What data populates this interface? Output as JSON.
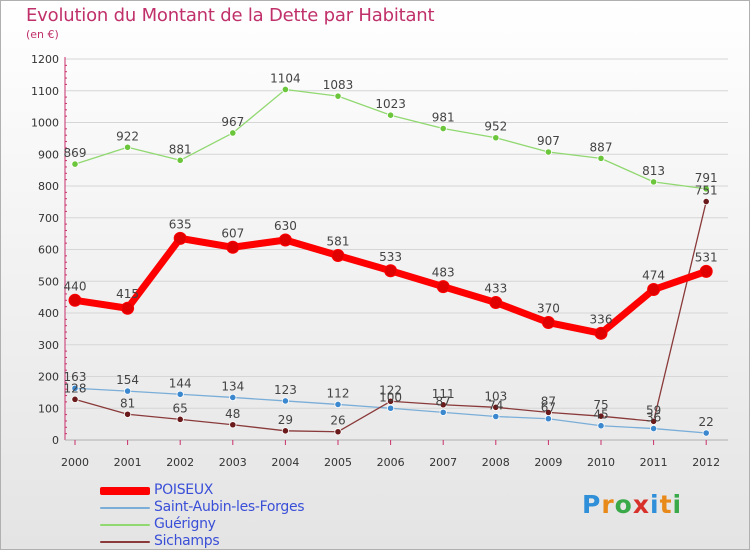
{
  "title": "Evolution du Montant de la Dette par Habitant",
  "subtitle": "(en €)",
  "logo": {
    "text": "Proxiti",
    "letter_colors": [
      "#2f8fd8",
      "#e88a1a",
      "#3aa94a",
      "#d8302a",
      "#2f8fd8",
      "#e88a1a",
      "#3aa94a"
    ]
  },
  "chart_data": {
    "type": "line",
    "categories": [
      "2000",
      "2001",
      "2002",
      "2003",
      "2004",
      "2005",
      "2006",
      "2007",
      "2008",
      "2009",
      "2010",
      "2011",
      "2012"
    ],
    "ylim": [
      0,
      1200
    ],
    "yticks": [
      0,
      100,
      200,
      300,
      400,
      500,
      600,
      700,
      800,
      900,
      1000,
      1100,
      1200
    ],
    "grid": "horizontal",
    "legend_position": "bottom-left",
    "series": [
      {
        "name": "POISEUX",
        "color": "#ff0000",
        "marker": "#e00000",
        "width": 7,
        "radius": 6,
        "values": [
          440,
          415,
          635,
          607,
          630,
          581,
          533,
          483,
          433,
          370,
          336,
          474,
          531
        ]
      },
      {
        "name": "Saint-Aubin-les-Forges",
        "color": "#7aaed8",
        "marker": "#3b88cf",
        "width": 1.3,
        "radius": 3.2,
        "values": [
          163,
          154,
          144,
          134,
          123,
          112,
          100,
          87,
          74,
          67,
          45,
          36,
          22
        ]
      },
      {
        "name": "Guérigny",
        "color": "#90d870",
        "marker": "#6cc63c",
        "width": 1.3,
        "radius": 3.2,
        "values": [
          869,
          922,
          881,
          967,
          1104,
          1083,
          1023,
          981,
          952,
          907,
          887,
          813,
          791
        ]
      },
      {
        "name": "Sichamps",
        "color": "#8a3a3a",
        "marker": "#6a1a1a",
        "width": 1.3,
        "radius": 3.2,
        "values": [
          128,
          81,
          65,
          48,
          29,
          26,
          122,
          111,
          103,
          87,
          75,
          59,
          751
        ]
      }
    ]
  }
}
